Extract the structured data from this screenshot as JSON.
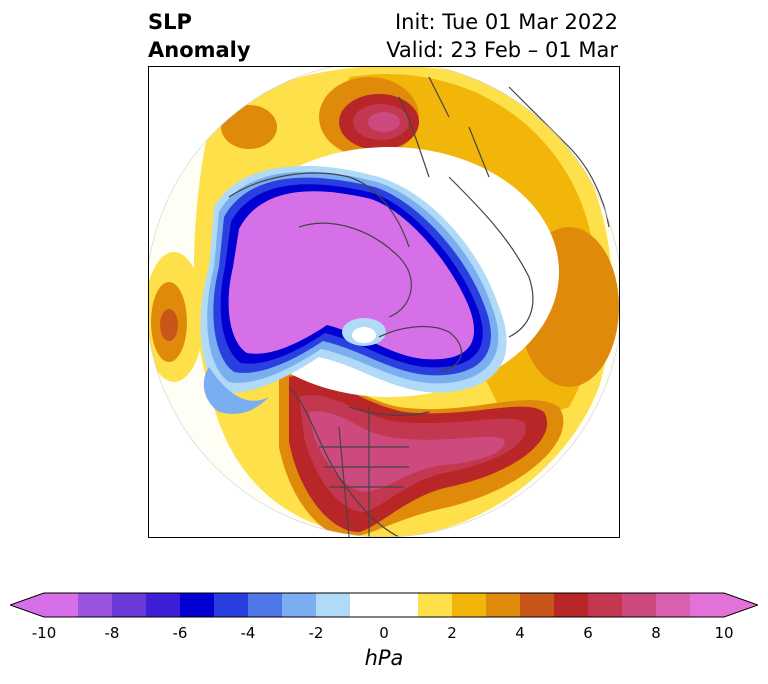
{
  "header": {
    "title_line1": "SLP",
    "title_line2": "Anomaly",
    "init_label": "Init: Tue 01 Mar 2022",
    "valid_label": "Valid: 23 Feb – 01 Mar"
  },
  "map": {
    "projection": "north-polar-stereographic",
    "features": [
      "coastlines",
      "country-borders",
      "us-state-borders"
    ]
  },
  "colorbar": {
    "units": "hPa",
    "extend": "both",
    "ticks": [
      "-10",
      "-8",
      "-6",
      "-4",
      "-2",
      "0",
      "2",
      "4",
      "6",
      "8",
      "10"
    ],
    "colors": [
      "#d670e8",
      "#9a55e0",
      "#6a3ad8",
      "#3e1fd6",
      "#0000d2",
      "#2a3fe0",
      "#4f77e8",
      "#7aaef0",
      "#b0daf8",
      "#ffffff",
      "#ffffff",
      "#fde04a",
      "#f2b60a",
      "#e08a0c",
      "#c8561a",
      "#b82628",
      "#c33750",
      "#cc4a7e",
      "#d960ae",
      "#e272d8"
    ]
  }
}
